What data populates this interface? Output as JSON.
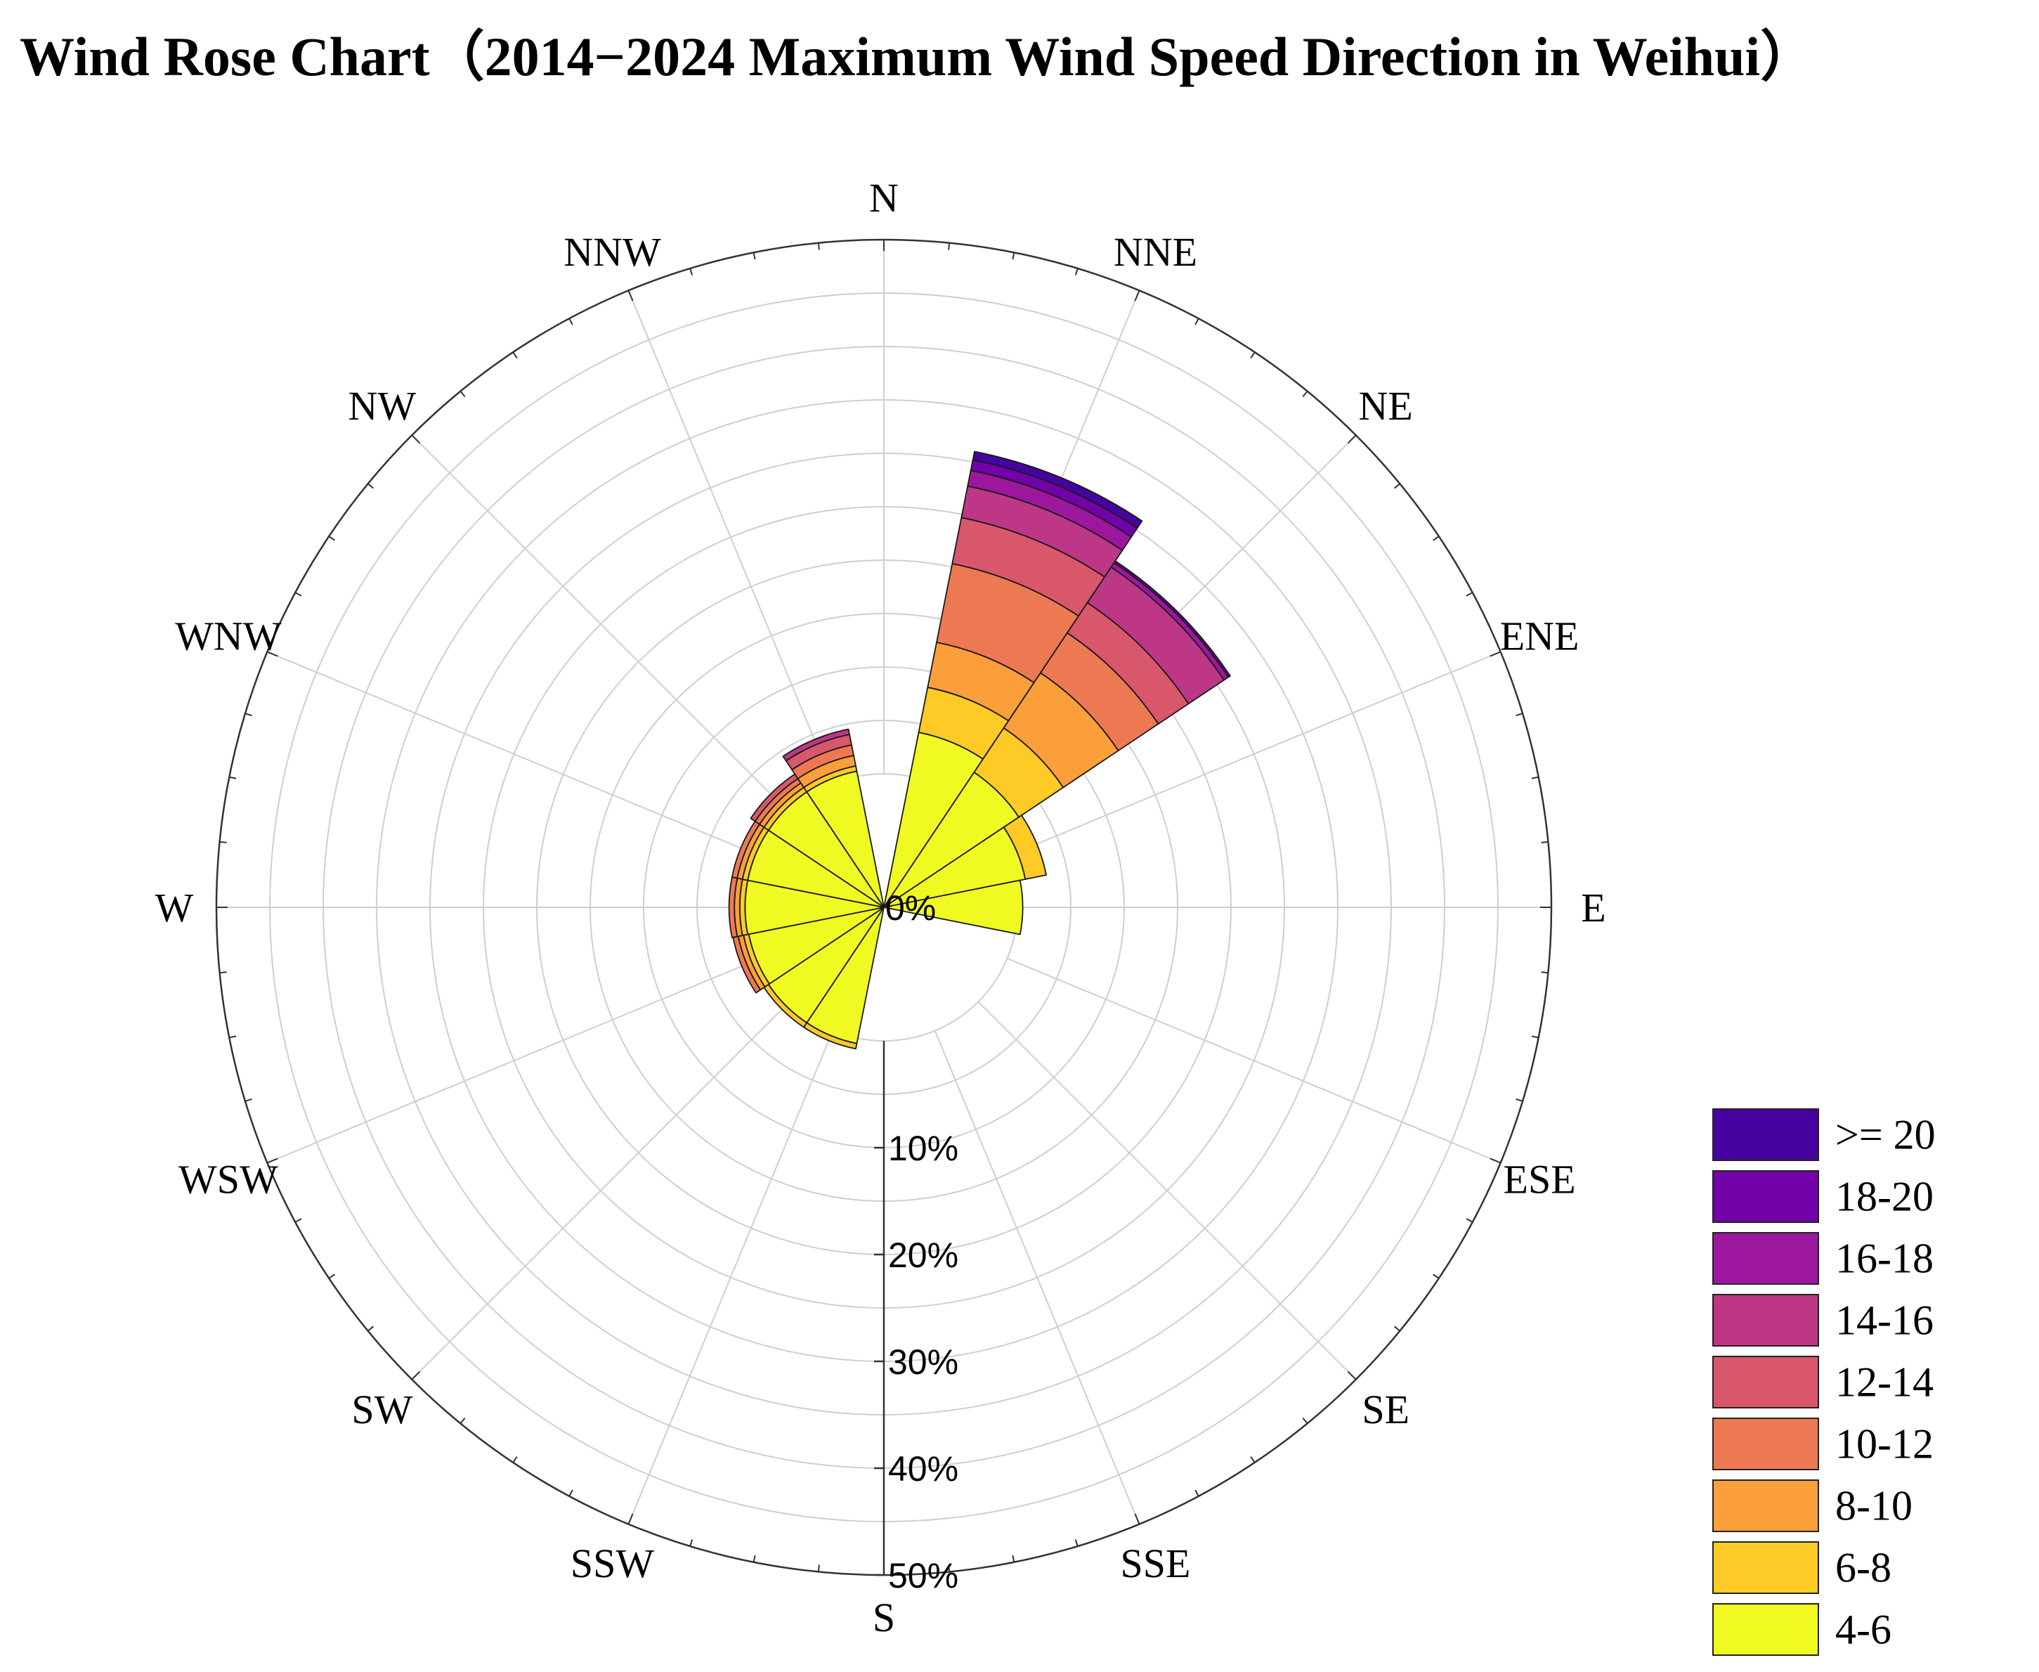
{
  "title": "Wind Rose Chart（2014−2024 Maximum Wind Speed Direction in Weihui）",
  "chart_data": {
    "type": "bar",
    "subtype": "polar-stacked-wind-rose",
    "direction_labels": [
      "N",
      "NNE",
      "NE",
      "ENE",
      "E",
      "ESE",
      "SE",
      "SSE",
      "S",
      "SSW",
      "SW",
      "WSW",
      "W",
      "WNW",
      "NW",
      "NNW"
    ],
    "radial_ticks": [
      "0%",
      "10%",
      "20%",
      "30%",
      "40%",
      "50%"
    ],
    "rlim": [
      0,
      50
    ],
    "grid": true,
    "legend_position": "bottom-right",
    "bins": [
      {
        "label": "4-6",
        "color": "#f0f921"
      },
      {
        "label": "6-8",
        "color": "#fdca26"
      },
      {
        "label": "8-10",
        "color": "#fb9f3a"
      },
      {
        "label": "10-12",
        "color": "#ed7953"
      },
      {
        "label": "12-14",
        "color": "#d8576b"
      },
      {
        "label": "14-16",
        "color": "#bd3786"
      },
      {
        "label": "16-18",
        "color": "#9c179e"
      },
      {
        "label": "18-20",
        "color": "#7201a8"
      },
      {
        "label": ">= 20",
        "color": "#46039f"
      }
    ],
    "frequencies_percent": {
      "N": [
        0,
        0,
        0,
        0,
        0,
        0,
        0,
        0,
        0
      ],
      "NNE": [
        4.2,
        4.3,
        4.3,
        7.5,
        4.4,
        3.0,
        1.5,
        1.0,
        0.8
      ],
      "NE": [
        2.7,
        5.0,
        6.2,
        4.5,
        3.4,
        4.0,
        0.5,
        0.2,
        0
      ],
      "ENE": [
        1.0,
        2.0,
        0,
        0,
        0,
        0,
        0,
        0,
        0
      ],
      "E": [
        0.5,
        0,
        0,
        0,
        0,
        0,
        0,
        0,
        0
      ],
      "ESE": [
        0,
        0,
        0,
        0,
        0,
        0,
        0,
        0,
        0
      ],
      "SE": [
        0,
        0,
        0,
        0,
        0,
        0,
        0,
        0,
        0
      ],
      "SSE": [
        0,
        0,
        0,
        0,
        0,
        0,
        0,
        0,
        0
      ],
      "S": [
        0,
        0,
        0,
        0,
        0,
        0,
        0,
        0,
        0
      ],
      "SSW": [
        0.5,
        0.5,
        0,
        0,
        0,
        0,
        0,
        0,
        0
      ],
      "SW": [
        0.5,
        0.5,
        0,
        0,
        0,
        0,
        0,
        0,
        0
      ],
      "WSW": [
        0.4,
        0.5,
        0.5,
        0.5,
        0,
        0,
        0,
        0,
        0
      ],
      "W": [
        0.5,
        0.5,
        0.5,
        0.5,
        0,
        0,
        0,
        0,
        0
      ],
      "WNW": [
        0.5,
        0.5,
        0.5,
        0.5,
        0,
        0,
        0,
        0,
        0
      ],
      "NW": [
        0.5,
        0.5,
        0.5,
        0.5,
        0.5,
        0,
        0,
        0,
        0
      ],
      "NNW": [
        0.5,
        0.5,
        1.0,
        1.0,
        1.0,
        0.5,
        0,
        0,
        0
      ]
    }
  }
}
